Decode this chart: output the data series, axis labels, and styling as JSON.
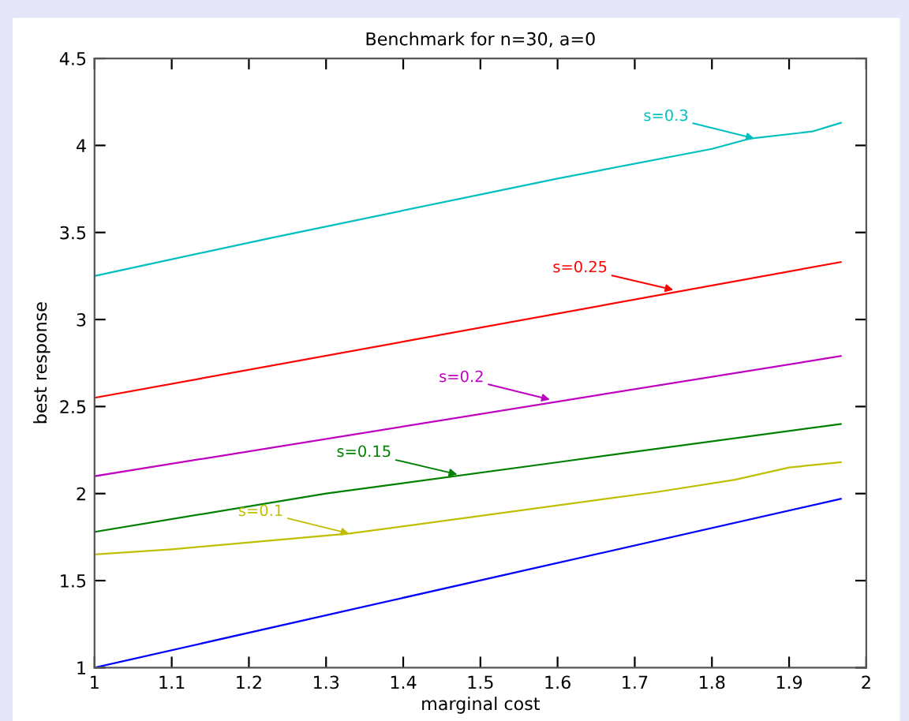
{
  "chart_data": {
    "type": "line",
    "title": "Benchmark for n=30, a=0",
    "xlabel": "marginal cost",
    "ylabel": "best response",
    "xlim": [
      1,
      2
    ],
    "xticks": [
      1,
      1.1,
      1.2,
      1.3,
      1.4,
      1.5,
      1.6,
      1.7,
      1.8,
      1.9,
      2
    ],
    "ylim": [
      1,
      4.5
    ],
    "yticks": [
      1,
      1.5,
      2,
      2.5,
      3,
      3.5,
      4,
      4.5
    ],
    "grid": false,
    "series": [
      {
        "color": "#00bfbf",
        "x": [
          1,
          1.23,
          1.6,
          1.8,
          1.85,
          1.93,
          1.967
        ],
        "values": [
          3.25,
          3.47,
          3.81,
          3.98,
          4.04,
          4.08,
          4.13
        ]
      },
      {
        "color": "#ff0000",
        "x": [
          1,
          1.967
        ],
        "values": [
          2.55,
          3.33
        ]
      },
      {
        "color": "#bf00bf",
        "x": [
          1,
          1.967
        ],
        "values": [
          2.1,
          2.79
        ]
      },
      {
        "color": "#008000",
        "x": [
          1,
          1.3,
          1.6,
          1.967
        ],
        "values": [
          1.78,
          2.0,
          2.18,
          2.4
        ]
      },
      {
        "color": "#bfbf00",
        "x": [
          1,
          1.1,
          1.33,
          1.73,
          1.83,
          1.9,
          1.967
        ],
        "values": [
          1.65,
          1.68,
          1.77,
          2.01,
          2.08,
          2.15,
          2.18
        ]
      },
      {
        "color": "#0000ff",
        "x": [
          1,
          1.967
        ],
        "values": [
          1.0,
          1.97
        ]
      }
    ],
    "annotations": [
      {
        "text": "s=0.3",
        "x": 1.855,
        "y": 4.04
      },
      {
        "text": "s=0.25",
        "x": 1.75,
        "y": 3.17
      },
      {
        "text": "s=0.2",
        "x": 1.59,
        "y": 2.54
      },
      {
        "text": "s=0.15",
        "x": 1.47,
        "y": 2.11
      },
      {
        "text": "s=0.1",
        "x": 1.33,
        "y": 1.77
      }
    ]
  }
}
